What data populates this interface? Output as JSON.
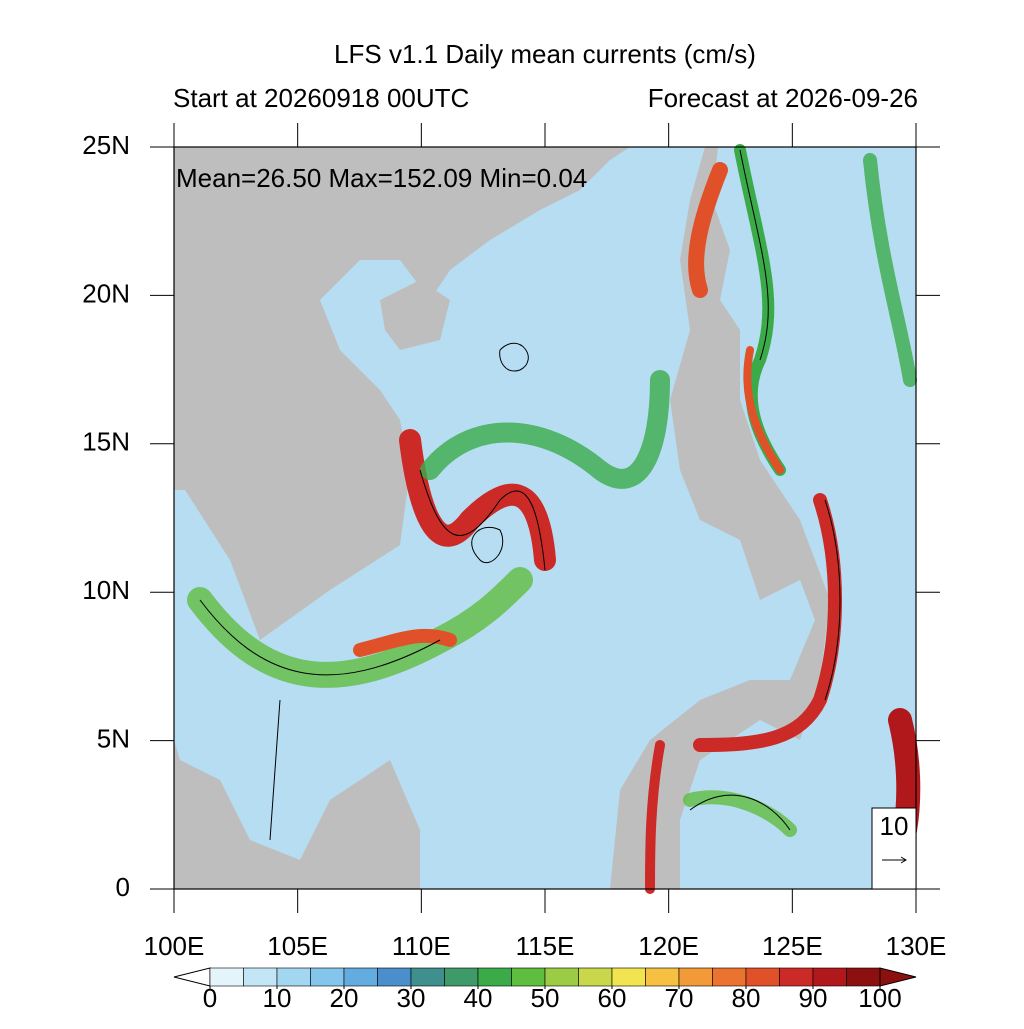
{
  "header": {
    "title": "LFS v1.1 Daily mean currents (cm/s)",
    "start": "Start at 20260918 00UTC",
    "forecast": "Forecast at 2026-09-26"
  },
  "stats": "Mean=26.50  Max=152.09  Min=0.04",
  "map": {
    "lon_range": [
      100,
      130
    ],
    "lat_range": [
      0,
      25
    ],
    "lon_ticks": [
      {
        "value": 100,
        "label": "100E"
      },
      {
        "value": 105,
        "label": "105E"
      },
      {
        "value": 110,
        "label": "110E"
      },
      {
        "value": 115,
        "label": "115E"
      },
      {
        "value": 120,
        "label": "120E"
      },
      {
        "value": 125,
        "label": "125E"
      },
      {
        "value": 130,
        "label": "130E"
      }
    ],
    "lat_ticks": [
      {
        "value": 0,
        "label": "0"
      },
      {
        "value": 5,
        "label": "5N"
      },
      {
        "value": 10,
        "label": "10N"
      },
      {
        "value": 15,
        "label": "15N"
      },
      {
        "value": 20,
        "label": "20N"
      },
      {
        "value": 25,
        "label": "25N"
      }
    ]
  },
  "reference_vector": 10,
  "colorbar": {
    "range": [
      0,
      100
    ],
    "ticks": [
      0,
      10,
      20,
      30,
      40,
      50,
      60,
      70,
      80,
      90,
      100
    ],
    "under_color": "#ffffff",
    "over_color": "#8c1010",
    "colors": [
      "#e3f4fb",
      "#c3e6f6",
      "#a3d6f1",
      "#84c5ec",
      "#62acdf",
      "#4a8fcb",
      "#3f8f8f",
      "#3f9a6a",
      "#3bab4a",
      "#5fbd3f",
      "#9ccc45",
      "#c9d84a",
      "#f2e451",
      "#f6c043",
      "#f29a38",
      "#ea732f",
      "#e0512a",
      "#cc2a26",
      "#b0181c",
      "#8c1010"
    ]
  }
}
